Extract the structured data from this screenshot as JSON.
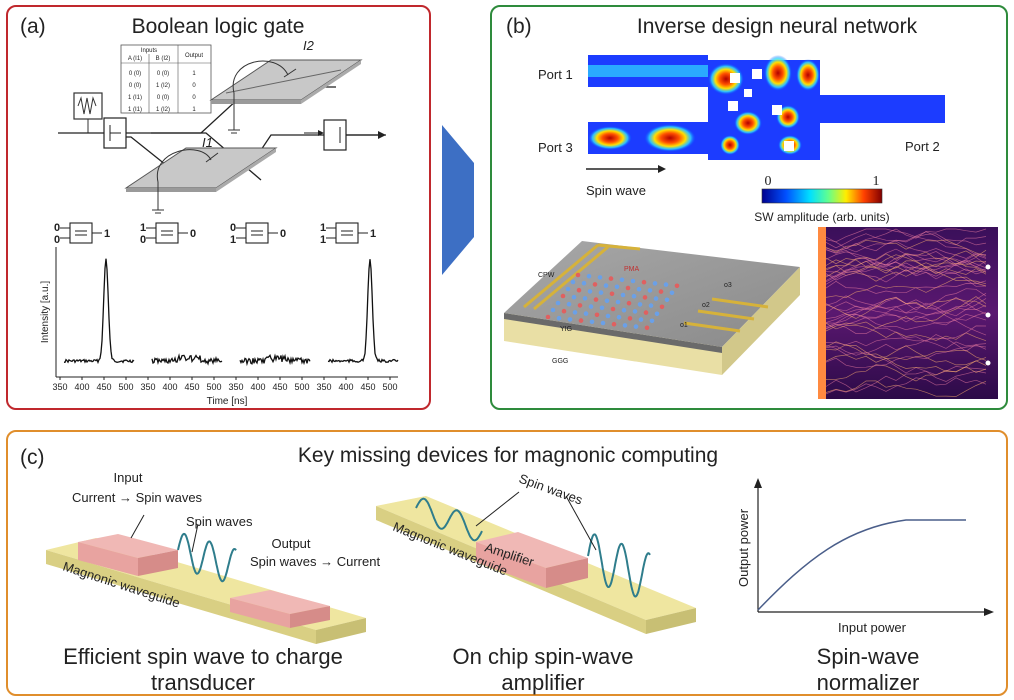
{
  "panel_a": {
    "label": "(a)",
    "title": "Boolean logic gate",
    "table_headers": [
      "Inputs",
      "A (I1)",
      "B (I2)",
      "Output"
    ],
    "table_rows": [
      [
        "0 (0)",
        "0 (0)",
        "1"
      ],
      [
        "0 (0)",
        "1 (I2)",
        "0"
      ],
      [
        "1 (I1)",
        "0 (0)",
        "0"
      ],
      [
        "1 (I1)",
        "1 (I2)",
        "1"
      ]
    ],
    "current_1": "I1",
    "current_2": "I2",
    "gate_inputs": [
      [
        "0",
        "0"
      ],
      [
        "1",
        "0"
      ],
      [
        "0",
        "1"
      ],
      [
        "1",
        "1"
      ]
    ],
    "gate_outputs": [
      "1",
      "0",
      "0",
      "1"
    ],
    "y_axis_label": "Intensity [a.u.]",
    "x_axis_label": "Time [ns]",
    "x_ticks": [
      "350",
      "400",
      "450",
      "500"
    ]
  },
  "panel_b": {
    "label": "(b)",
    "title": "Inverse design neural network",
    "port1": "Port 1",
    "port2": "Port 2",
    "port3": "Port 3",
    "spin_wave": "Spin wave",
    "colorbar_min": "0",
    "colorbar_max": "1",
    "colorbar_label": "SW amplitude (arb. units)",
    "device_labels": [
      "CPW",
      "PMA",
      "YIG",
      "GGG",
      "o1",
      "o2",
      "o3"
    ]
  },
  "panel_c": {
    "label": "(c)",
    "title": "Key missing devices for magnonic computing",
    "transducer": {
      "input": "Input",
      "input_line": "Current → Spin waves",
      "spin_waves": "Spin waves",
      "output": "Output",
      "output_line": "Spin waves → Current",
      "waveguide": "Magnonic waveguide",
      "caption_1": "Efficient spin wave to charge",
      "caption_2": "transducer"
    },
    "amplifier": {
      "spin_waves": "Spin waves",
      "amplifier": "Amplifier",
      "waveguide": "Magnonic waveguide",
      "caption_1": "On chip spin-wave",
      "caption_2": "amplifier"
    },
    "normalizer": {
      "ylabel": "Output power",
      "xlabel": "Input power",
      "caption_1": "Spin-wave",
      "caption_2": "normalizer"
    }
  },
  "colors": {
    "panel_a_border": "#c0282d",
    "panel_b_border": "#2e8b3c",
    "panel_c_border": "#e08e2c",
    "arrow": "#3d6fc4",
    "waveguide": "#efe6a0",
    "device_pad": "#e8a3a0",
    "spin_wave": "#2f7d8c"
  }
}
